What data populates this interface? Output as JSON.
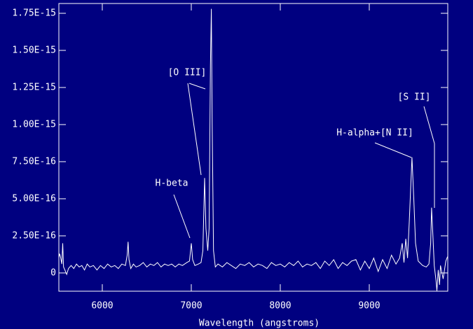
{
  "chart_data": {
    "type": "line",
    "x_label": "Wavelength (angstroms)",
    "x": [
      5512,
      5520,
      5530,
      5545,
      5555,
      5565,
      5580,
      5600,
      5620,
      5650,
      5680,
      5710,
      5740,
      5770,
      5800,
      5830,
      5860,
      5900,
      5940,
      5980,
      6020,
      6060,
      6100,
      6140,
      6180,
      6220,
      6260,
      6280,
      6290,
      6300,
      6320,
      6350,
      6380,
      6420,
      6460,
      6500,
      6540,
      6580,
      6620,
      6660,
      6700,
      6740,
      6780,
      6820,
      6860,
      6900,
      6950,
      6980,
      7000,
      7015,
      7040,
      7080,
      7110,
      7130,
      7150,
      7165,
      7185,
      7200,
      7215,
      7225,
      7235,
      7250,
      7270,
      7300,
      7350,
      7400,
      7450,
      7500,
      7550,
      7600,
      7650,
      7700,
      7750,
      7800,
      7850,
      7900,
      7950,
      8000,
      8050,
      8100,
      8150,
      8200,
      8250,
      8300,
      8350,
      8400,
      8450,
      8500,
      8550,
      8600,
      8650,
      8700,
      8750,
      8800,
      8850,
      8900,
      8950,
      9000,
      9050,
      9100,
      9150,
      9200,
      9250,
      9300,
      9340,
      9370,
      9390,
      9410,
      9430,
      9450,
      9480,
      9500,
      9520,
      9550,
      9600,
      9640,
      9670,
      9690,
      9700,
      9715,
      9730,
      9750,
      9760,
      9775,
      9790,
      9800,
      9830,
      9860,
      9880
    ],
    "series": [
      {
        "color": "#ffffff",
        "values": [
          1e-16,
          1.3e-16,
          1.1e-16,
          6e-17,
          2e-16,
          4e-17,
          2e-17,
          -1e-17,
          3e-17,
          5e-17,
          3e-17,
          6e-17,
          4e-17,
          5e-17,
          2e-17,
          6e-17,
          4e-17,
          5e-17,
          2e-17,
          5e-17,
          3e-17,
          6e-17,
          4e-17,
          5e-17,
          3e-17,
          6e-17,
          5e-17,
          1.2e-16,
          2.1e-16,
          9e-17,
          3e-17,
          6e-17,
          4e-17,
          5e-17,
          7e-17,
          4e-17,
          6e-17,
          5e-17,
          7e-17,
          4e-17,
          6e-17,
          5e-17,
          6e-17,
          4e-17,
          6e-17,
          5e-17,
          7e-17,
          8e-17,
          2e-16,
          9e-17,
          5e-17,
          6e-17,
          7e-17,
          1.5e-16,
          6.4e-16,
          3e-16,
          1.5e-16,
          3e-16,
          1.4e-15,
          1.78e-15,
          1e-15,
          1.5e-16,
          4e-17,
          6e-17,
          4e-17,
          7e-17,
          5e-17,
          3e-17,
          6e-17,
          5e-17,
          7e-17,
          4e-17,
          6e-17,
          5e-17,
          3e-17,
          7e-17,
          5e-17,
          6e-17,
          4e-17,
          7e-17,
          5e-17,
          8e-17,
          4e-17,
          6e-17,
          5e-17,
          7e-17,
          3e-17,
          8e-17,
          5e-17,
          9e-17,
          3e-17,
          7e-17,
          5e-17,
          8e-17,
          9e-17,
          2e-17,
          8e-17,
          3e-17,
          1e-16,
          1e-17,
          9e-17,
          3e-17,
          1.2e-16,
          6e-17,
          1e-16,
          2e-16,
          7e-17,
          2.3e-16,
          1e-16,
          3.5e-16,
          7.8e-16,
          5e-16,
          2e-16,
          8e-17,
          5e-17,
          4e-17,
          6e-17,
          2e-16,
          4.4e-16,
          2.5e-16,
          5e-17,
          -5e-17,
          -1.2e-16,
          2e-17,
          -8e-17,
          5e-17,
          -4e-17,
          8e-17,
          1.1e-16
        ]
      }
    ],
    "xlim": [
      5512,
      9882
    ],
    "xticks": [
      6000,
      7000,
      8000,
      9000
    ],
    "ylim": [
      -1.23e-16,
      1.816e-15
    ],
    "yticks": [
      0,
      {
        "value": 2.5e-16,
        "label": "2.50E-16"
      },
      {
        "value": 5e-16,
        "label": "5.00E-16"
      },
      {
        "value": 7.5e-16,
        "label": "7.50E-16"
      },
      {
        "value": 1e-15,
        "label": "1.00E-15"
      },
      {
        "value": 1.25e-15,
        "label": "1.25E-15"
      },
      {
        "value": 1.5e-15,
        "label": "1.50E-15"
      },
      {
        "value": 1.75e-15,
        "label": "1.75E-15"
      }
    ],
    "annotations": [
      "[O III]",
      "H-beta",
      "H-alpha+[N II]",
      "[S II]"
    ]
  }
}
